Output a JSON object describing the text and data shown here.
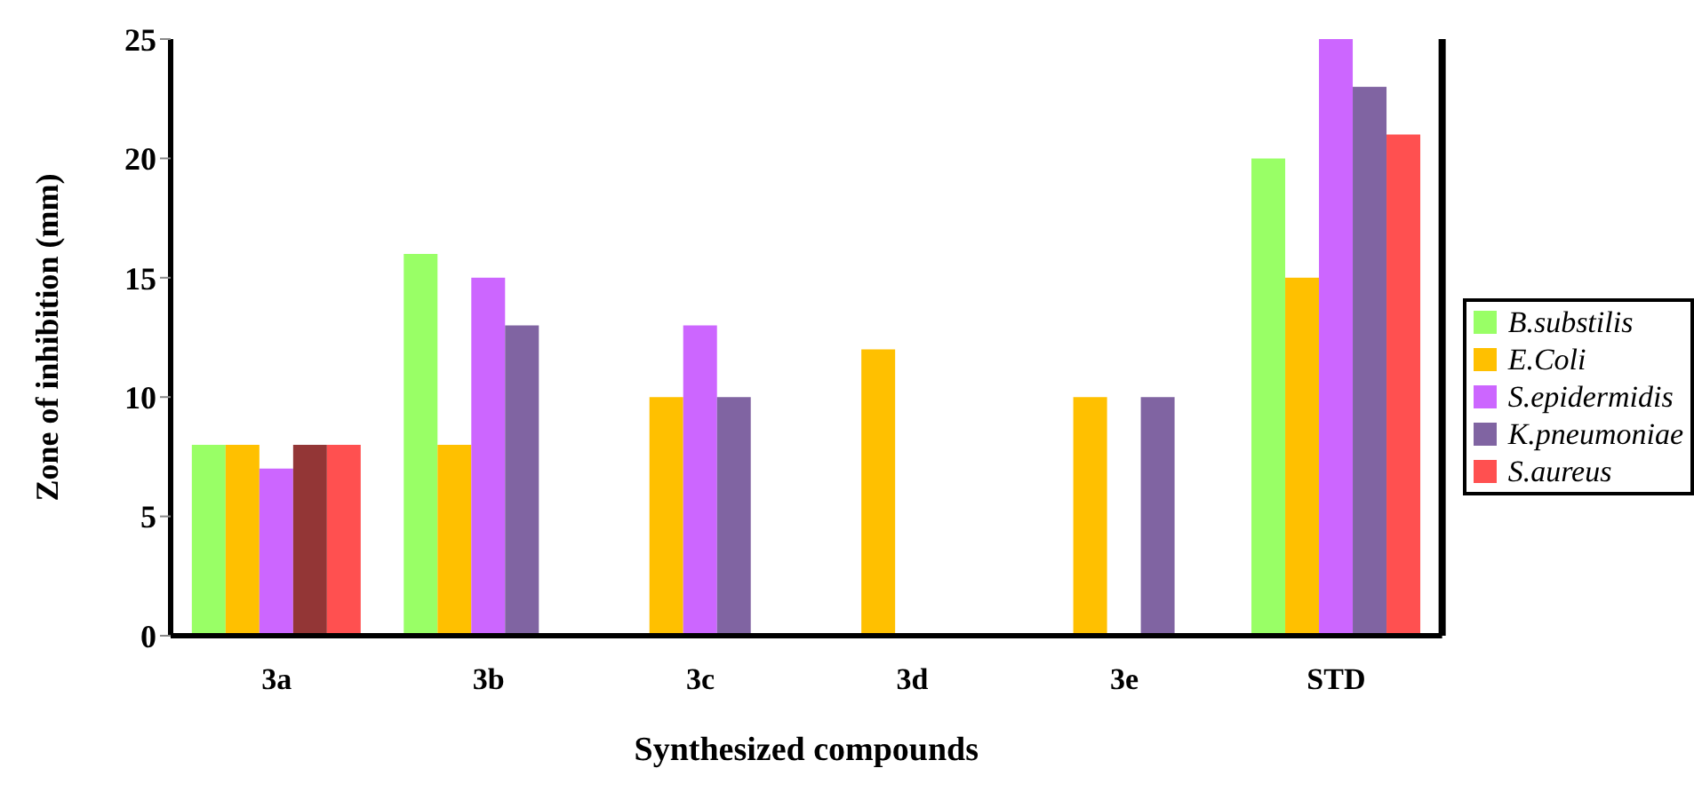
{
  "chart_data": {
    "type": "bar",
    "xlabel": "Synthesized compounds",
    "ylabel": "Zone of inhibition (mm)",
    "categories": [
      "3a",
      "3b",
      "3c",
      "3d",
      "3e",
      "STD"
    ],
    "series": [
      {
        "name": "B.substilis",
        "color": "#99ff66",
        "values": [
          8,
          16,
          null,
          null,
          null,
          20
        ]
      },
      {
        "name": "E.Coli",
        "color": "#ffc000",
        "values": [
          8,
          8,
          10,
          12,
          10,
          15
        ]
      },
      {
        "name": "S.epidermidis",
        "color": "#cc66ff",
        "values": [
          7,
          15,
          13,
          null,
          null,
          25
        ]
      },
      {
        "name": "K.pneumoniae",
        "color": "#8064a2",
        "colors": [
          "#933636",
          "#8064a2",
          "#8064a2",
          "#8064a2",
          "#8064a2",
          "#8064a2"
        ],
        "values": [
          8,
          13,
          10,
          null,
          10,
          23
        ]
      },
      {
        "name": "S.aureus",
        "color": "#ff5050",
        "values": [
          8,
          null,
          null,
          null,
          null,
          21
        ]
      }
    ],
    "ylim": [
      0,
      25
    ],
    "yticks": [
      0,
      5,
      10,
      15,
      20,
      25
    ],
    "grid": false,
    "legend": "right"
  }
}
